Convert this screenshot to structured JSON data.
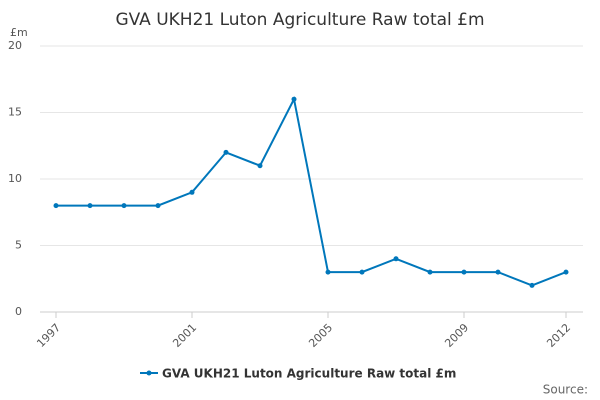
{
  "chart_data": {
    "type": "line",
    "title": "GVA UKH21 Luton Agriculture Raw total £m",
    "y_label": "£m",
    "x": [
      1997,
      1998,
      1999,
      2000,
      2001,
      2002,
      2003,
      2004,
      2005,
      2006,
      2007,
      2008,
      2009,
      2010,
      2011,
      2012
    ],
    "series": [
      {
        "name": "GVA UKH21 Luton Agriculture Raw total £m",
        "color": "#0077bb",
        "values": [
          8,
          8,
          8,
          8,
          9,
          12,
          11,
          16,
          3,
          3,
          4,
          3,
          3,
          3,
          2,
          3
        ]
      }
    ],
    "xlim": [
      1997,
      2012
    ],
    "xticks": [
      1997,
      2001,
      2005,
      2009,
      2012
    ],
    "ylim": [
      0,
      20
    ],
    "yticks": [
      0,
      5,
      10,
      15,
      20
    ],
    "grid": true,
    "source": "Source:"
  }
}
